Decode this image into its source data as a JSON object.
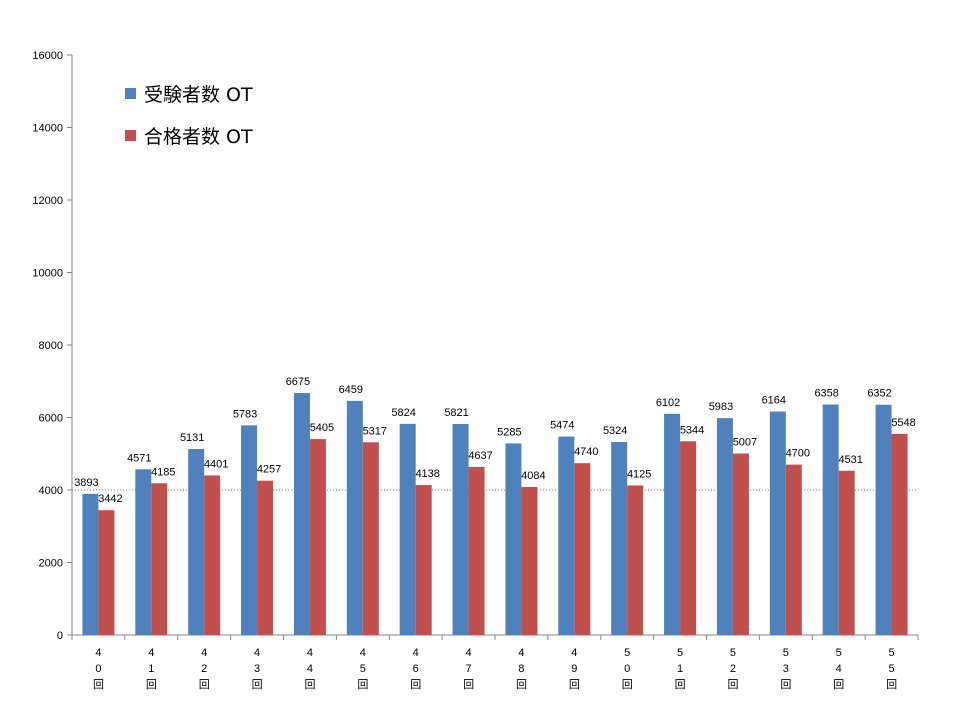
{
  "chart_data": {
    "type": "bar",
    "categories": [
      [
        "4",
        "0",
        "回"
      ],
      [
        "4",
        "1",
        "回"
      ],
      [
        "4",
        "2",
        "回"
      ],
      [
        "4",
        "3",
        "回"
      ],
      [
        "4",
        "4",
        "回"
      ],
      [
        "4",
        "5",
        "回"
      ],
      [
        "4",
        "6",
        "回"
      ],
      [
        "4",
        "7",
        "回"
      ],
      [
        "4",
        "8",
        "回"
      ],
      [
        "4",
        "9",
        "回"
      ],
      [
        "5",
        "0",
        "回"
      ],
      [
        "5",
        "1",
        "回"
      ],
      [
        "5",
        "2",
        "回"
      ],
      [
        "5",
        "3",
        "回"
      ],
      [
        "5",
        "4",
        "回"
      ],
      [
        "5",
        "5",
        "回"
      ]
    ],
    "series": [
      {
        "name": "受験者数  OT",
        "color": "#4f81bd",
        "values": [
          3893,
          4571,
          5131,
          5783,
          6675,
          6459,
          5824,
          5821,
          5285,
          5474,
          5324,
          6102,
          5983,
          6164,
          6358,
          6352
        ]
      },
      {
        "name": "合格者数  OT",
        "color": "#c0504d",
        "values": [
          3442,
          4185,
          4401,
          4257,
          5405,
          5317,
          4138,
          4637,
          4084,
          4740,
          4125,
          5344,
          5007,
          4700,
          4531,
          5548
        ]
      }
    ],
    "ylim": [
      0,
      16000
    ],
    "yticks": [
      "0",
      "2000",
      "4000",
      "6000",
      "8000",
      "10000",
      "12000",
      "14000",
      "16000"
    ],
    "reference_line": 4000,
    "legend_position": "top-left",
    "grid": false
  }
}
